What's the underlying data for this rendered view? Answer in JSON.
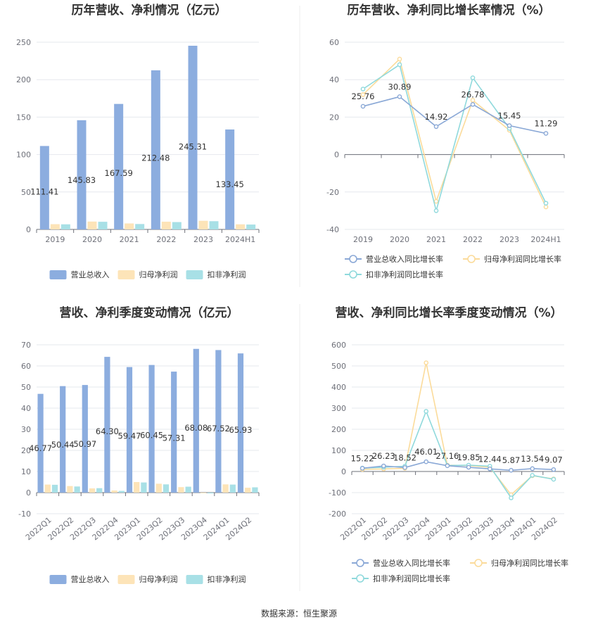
{
  "colors": {
    "revenue": "#8caddf",
    "net_profit": "#fde4b8",
    "deducted_profit": "#a8e0e6",
    "rev_growth_line": "#8aa8d6",
    "np_growth_line": "#fbdb9a",
    "dp_growth_line": "#8fd9dc",
    "grid": "#e6e8ee",
    "axis": "#6e7079"
  },
  "source": "数据来源：恒生聚源",
  "chart_data": [
    {
      "id": "annual_values",
      "type": "bar",
      "title": "历年营收、净利情况（亿元）",
      "categories": [
        "2019",
        "2020",
        "2021",
        "2022",
        "2023",
        "2024H1"
      ],
      "series": [
        {
          "name": "营业总收入",
          "color_key": "revenue",
          "values": [
            111.41,
            145.83,
            167.59,
            212.48,
            245.31,
            133.45
          ],
          "labels": [
            "111.41",
            "145.83",
            "167.59",
            "212.48",
            "245.31",
            "133.45"
          ]
        },
        {
          "name": "归母净利润",
          "color_key": "net_profit",
          "values": [
            7.0,
            10.5,
            8.0,
            10.3,
            11.5,
            6.8
          ]
        },
        {
          "name": "扣非净利润",
          "color_key": "deducted_profit",
          "values": [
            6.8,
            10.2,
            7.2,
            9.8,
            11.0,
            6.5
          ]
        }
      ],
      "ylim": [
        0,
        250
      ],
      "yticks": [
        0,
        50,
        100,
        150,
        200,
        250
      ],
      "ytick_labels": [
        "0",
        "50",
        "100",
        "150",
        "200",
        "250"
      ],
      "xlabel": "",
      "ylabel": "",
      "legend_position": "bottom"
    },
    {
      "id": "annual_growth",
      "type": "line",
      "title": "历年营收、净利同比增长率情况（%）",
      "categories": [
        "2019",
        "2020",
        "2021",
        "2022",
        "2023",
        "2024H1"
      ],
      "series": [
        {
          "name": "营业总收入同比增长率",
          "color_key": "rev_growth_line",
          "values": [
            25.76,
            30.89,
            14.92,
            26.78,
            15.45,
            11.29
          ],
          "labels": [
            "25.76",
            "30.89",
            "14.92",
            "26.78",
            "15.45",
            "11.29"
          ]
        },
        {
          "name": "归母净利润同比增长率",
          "color_key": "np_growth_line",
          "values": [
            32,
            51,
            -25,
            29,
            13,
            -28
          ]
        },
        {
          "name": "扣非净利润同比增长率",
          "color_key": "dp_growth_line",
          "values": [
            35,
            48,
            -30,
            41,
            14,
            -26
          ]
        }
      ],
      "ylim": [
        -40,
        60
      ],
      "yticks": [
        -40,
        -20,
        0,
        20,
        40,
        60
      ],
      "ytick_labels": [
        "-40",
        "-20",
        "0",
        "20",
        "40",
        "60"
      ],
      "xlabel": "",
      "ylabel": "",
      "legend_position": "bottom"
    },
    {
      "id": "quarterly_values",
      "type": "bar",
      "title": "营收、净利季度变动情况（亿元）",
      "categories": [
        "2022Q1",
        "2022Q2",
        "2022Q3",
        "2022Q4",
        "2023Q1",
        "2023Q2",
        "2023Q3",
        "2023Q4",
        "2024Q1",
        "2024Q2"
      ],
      "series": [
        {
          "name": "营业总收入",
          "color_key": "revenue",
          "values": [
            46.77,
            50.44,
            50.97,
            64.3,
            59.47,
            60.45,
            57.31,
            68.08,
            67.52,
            65.93
          ],
          "labels": [
            "46.77",
            "50.44",
            "50.97",
            "64.30",
            "59.47",
            "60.45",
            "57.31",
            "68.08",
            "67.52",
            "65.93"
          ]
        },
        {
          "name": "归母净利润",
          "color_key": "net_profit",
          "values": [
            3.8,
            3.1,
            2.0,
            1.0,
            5.0,
            4.2,
            2.6,
            -0.3,
            3.9,
            2.3
          ]
        },
        {
          "name": "扣非净利润",
          "color_key": "deducted_profit",
          "values": [
            3.7,
            2.9,
            2.1,
            0.8,
            4.8,
            3.9,
            2.8,
            -0.4,
            3.8,
            2.5
          ]
        }
      ],
      "ylim": [
        -10,
        70
      ],
      "yticks": [
        -10,
        0,
        10,
        20,
        30,
        40,
        50,
        60,
        70
      ],
      "ytick_labels": [
        "-10",
        "0",
        "10",
        "20",
        "30",
        "40",
        "50",
        "60",
        "70"
      ],
      "xlabel": "",
      "ylabel": "",
      "legend_position": "bottom"
    },
    {
      "id": "quarterly_growth",
      "type": "line",
      "title": "营收、净利同比增长率季度变动情况（%）",
      "categories": [
        "2022Q1",
        "2022Q2",
        "2022Q3",
        "2022Q4",
        "2023Q1",
        "2023Q2",
        "2023Q3",
        "2023Q4",
        "2024Q1",
        "2024Q2"
      ],
      "series": [
        {
          "name": "营业总收入同比增长率",
          "color_key": "rev_growth_line",
          "values": [
            15.22,
            26.23,
            18.52,
            46.01,
            27.16,
            19.85,
            12.44,
            5.87,
            13.54,
            9.07
          ],
          "labels": [
            "15.22",
            "26.23",
            "18.52",
            "46.01",
            "27.16",
            "19.85",
            "12.44",
            "5.87",
            "13.54",
            "9.07"
          ]
        },
        {
          "name": "归母净利润同比增长率",
          "color_key": "np_growth_line",
          "values": [
            10,
            12,
            15,
            515,
            30,
            28,
            20,
            -110,
            -20,
            -35
          ]
        },
        {
          "name": "扣非净利润同比增长率",
          "color_key": "dp_growth_line",
          "values": [
            16,
            20,
            25,
            285,
            28,
            30,
            25,
            -125,
            -18,
            -37
          ]
        }
      ],
      "ylim": [
        -200,
        600
      ],
      "yticks": [
        -200,
        -100,
        0,
        100,
        200,
        300,
        400,
        500,
        600
      ],
      "ytick_labels": [
        "-200",
        "-100",
        "0",
        "100",
        "200",
        "300",
        "400",
        "500",
        "600"
      ],
      "xlabel": "",
      "ylabel": "",
      "legend_position": "bottom"
    }
  ]
}
